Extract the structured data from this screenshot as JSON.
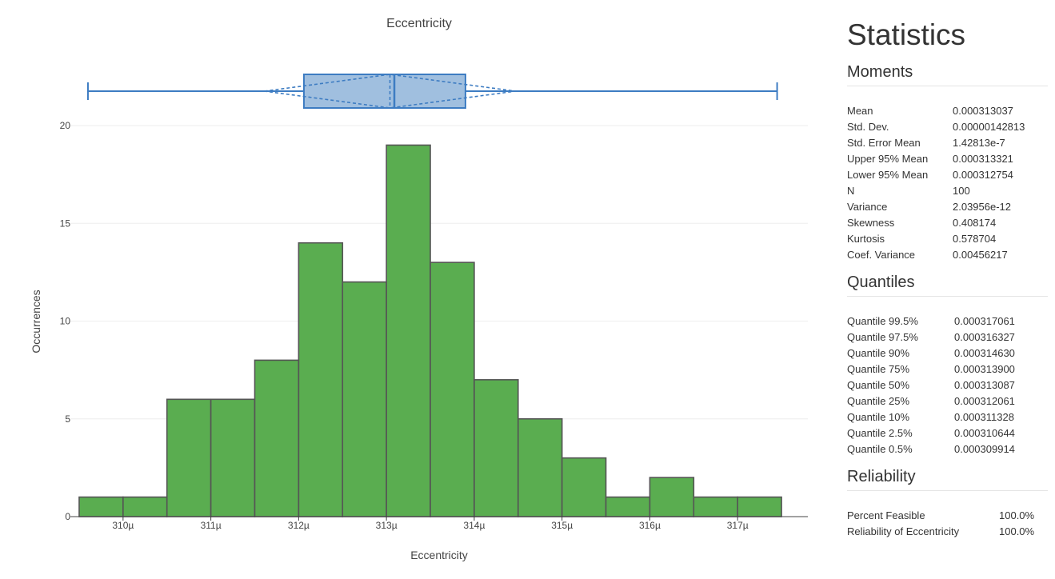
{
  "chart_data": {
    "type": "histogram",
    "title": "Eccentricity",
    "xlabel": "Eccentricity",
    "ylabel": "Occurrences",
    "bin_width": 0.5,
    "xlim": [
      309.4,
      317.8
    ],
    "ylim": [
      0,
      20
    ],
    "yticks": [
      0,
      5,
      10,
      15,
      20
    ],
    "ytick_labels": [
      "0",
      "5",
      "10",
      "15",
      "20"
    ],
    "xticks": [
      310,
      311,
      312,
      313,
      314,
      315,
      316,
      317
    ],
    "xtick_labels": [
      "310µ",
      "311µ",
      "312µ",
      "313µ",
      "314µ",
      "315µ",
      "316µ",
      "317µ"
    ],
    "bins": [
      {
        "x0": 309.5,
        "x1": 310.0,
        "count": 1
      },
      {
        "x0": 310.0,
        "x1": 310.5,
        "count": 1
      },
      {
        "x0": 310.5,
        "x1": 311.0,
        "count": 6
      },
      {
        "x0": 311.0,
        "x1": 311.5,
        "count": 6
      },
      {
        "x0": 311.5,
        "x1": 312.0,
        "count": 8
      },
      {
        "x0": 312.0,
        "x1": 312.5,
        "count": 14
      },
      {
        "x0": 312.5,
        "x1": 313.0,
        "count": 12
      },
      {
        "x0": 313.0,
        "x1": 313.5,
        "count": 19
      },
      {
        "x0": 313.5,
        "x1": 314.0,
        "count": 13
      },
      {
        "x0": 314.0,
        "x1": 314.5,
        "count": 7
      },
      {
        "x0": 314.5,
        "x1": 315.0,
        "count": 5
      },
      {
        "x0": 315.0,
        "x1": 315.5,
        "count": 3
      },
      {
        "x0": 315.5,
        "x1": 316.0,
        "count": 1
      },
      {
        "x0": 316.0,
        "x1": 316.5,
        "count": 2
      },
      {
        "x0": 316.5,
        "x1": 317.0,
        "count": 1
      },
      {
        "x0": 317.0,
        "x1": 317.5,
        "count": 1
      }
    ],
    "boxplot": {
      "whisker_low": 309.6,
      "q1": 312.06,
      "median": 313.09,
      "q3": 313.9,
      "whisker_high": 317.45,
      "mean": 313.04,
      "sd": 1.43
    },
    "colors": {
      "bar_fill": "#5aad50",
      "bar_stroke": "#555555",
      "box_fill": "#a0bfdf",
      "box_stroke": "#3d7cc2",
      "grid": "#eeeeee",
      "axis": "#444444"
    }
  },
  "stats": {
    "title": "Statistics",
    "moments": {
      "title": "Moments",
      "rows": [
        {
          "label": "Mean",
          "value": "0.000313037"
        },
        {
          "label": "Std. Dev.",
          "value": "0.00000142813"
        },
        {
          "label": "Std. Error Mean",
          "value": "1.42813e-7"
        },
        {
          "label": "Upper 95% Mean",
          "value": "0.000313321"
        },
        {
          "label": "Lower 95% Mean",
          "value": "0.000312754"
        },
        {
          "label": "N",
          "value": "100"
        },
        {
          "label": "Variance",
          "value": "2.03956e-12"
        },
        {
          "label": "Skewness",
          "value": "0.408174"
        },
        {
          "label": "Kurtosis",
          "value": "0.578704"
        },
        {
          "label": "Coef. Variance",
          "value": "0.00456217"
        }
      ]
    },
    "quantiles": {
      "title": "Quantiles",
      "rows": [
        {
          "label": "Quantile 99.5%",
          "value": "0.000317061"
        },
        {
          "label": "Quantile 97.5%",
          "value": "0.000316327"
        },
        {
          "label": "Quantile 90%",
          "value": "0.000314630"
        },
        {
          "label": "Quantile 75%",
          "value": "0.000313900"
        },
        {
          "label": "Quantile 50%",
          "value": "0.000313087"
        },
        {
          "label": "Quantile 25%",
          "value": "0.000312061"
        },
        {
          "label": "Quantile 10%",
          "value": "0.000311328"
        },
        {
          "label": "Quantile 2.5%",
          "value": "0.000310644"
        },
        {
          "label": "Quantile 0.5%",
          "value": "0.000309914"
        }
      ]
    },
    "reliability": {
      "title": "Reliability",
      "rows": [
        {
          "label": "Percent Feasible",
          "value": "100.0%"
        },
        {
          "label": "Reliability of Eccentricity",
          "value": "100.0%"
        }
      ]
    }
  }
}
